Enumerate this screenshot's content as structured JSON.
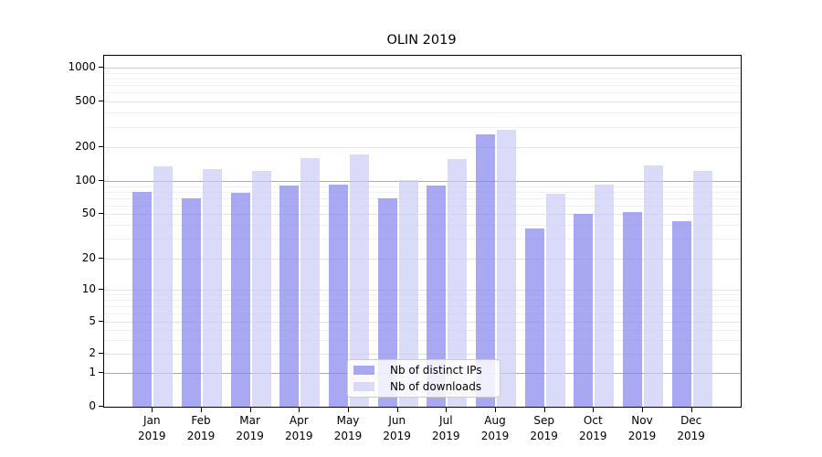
{
  "title": "OLIN 2019",
  "chart_data": {
    "type": "bar",
    "title": "OLIN 2019",
    "categories": [
      "Jan 2019",
      "Feb 2019",
      "Mar 2019",
      "Apr 2019",
      "May 2019",
      "Jun 2019",
      "Jul 2019",
      "Aug 2019",
      "Sep 2019",
      "Oct 2019",
      "Nov 2019",
      "Dec 2019"
    ],
    "month_labels": [
      "Jan",
      "Feb",
      "Mar",
      "Apr",
      "May",
      "Jun",
      "Jul",
      "Aug",
      "Sep",
      "Oct",
      "Nov",
      "Dec"
    ],
    "year_label": "2019",
    "series": [
      {
        "name": "Nb of distinct IPs",
        "color": "rgba(132,132,238,0.70)",
        "values": [
          79,
          70,
          78,
          91,
          93,
          70,
          91,
          260,
          37,
          50,
          52,
          43
        ]
      },
      {
        "name": "Nb of downloads",
        "color": "rgba(203,203,247,0.70)",
        "values": [
          136,
          127,
          122,
          159,
          171,
          102,
          157,
          285,
          76,
          93,
          137,
          124
        ]
      }
    ],
    "xlabel": "",
    "ylabel": "",
    "y_ticks": [
      0,
      1,
      2,
      5,
      10,
      20,
      50,
      100,
      200,
      500,
      1000
    ],
    "y_minor_ticks": [
      3,
      4,
      6,
      7,
      8,
      9,
      30,
      40,
      60,
      70,
      80,
      90,
      300,
      400,
      600,
      700,
      800,
      900
    ],
    "y_scale": "symlog",
    "ylim": [
      0,
      1280
    ],
    "grid": true,
    "legend_position": "lower center",
    "emphasized_gridlines": [
      1,
      100
    ],
    "semi_emphasized_gridlines": [
      1000
    ],
    "y_scale_anchors": [
      {
        "v": 0,
        "f": 0.0
      },
      {
        "v": 1,
        "f": 0.096
      },
      {
        "v": 2,
        "f": 0.151
      },
      {
        "v": 5,
        "f": 0.242
      },
      {
        "v": 10,
        "f": 0.333
      },
      {
        "v": 20,
        "f": 0.422
      },
      {
        "v": 50,
        "f": 0.549
      },
      {
        "v": 100,
        "f": 0.643
      },
      {
        "v": 200,
        "f": 0.74
      },
      {
        "v": 500,
        "f": 0.87
      },
      {
        "v": 1000,
        "f": 0.966
      }
    ]
  }
}
